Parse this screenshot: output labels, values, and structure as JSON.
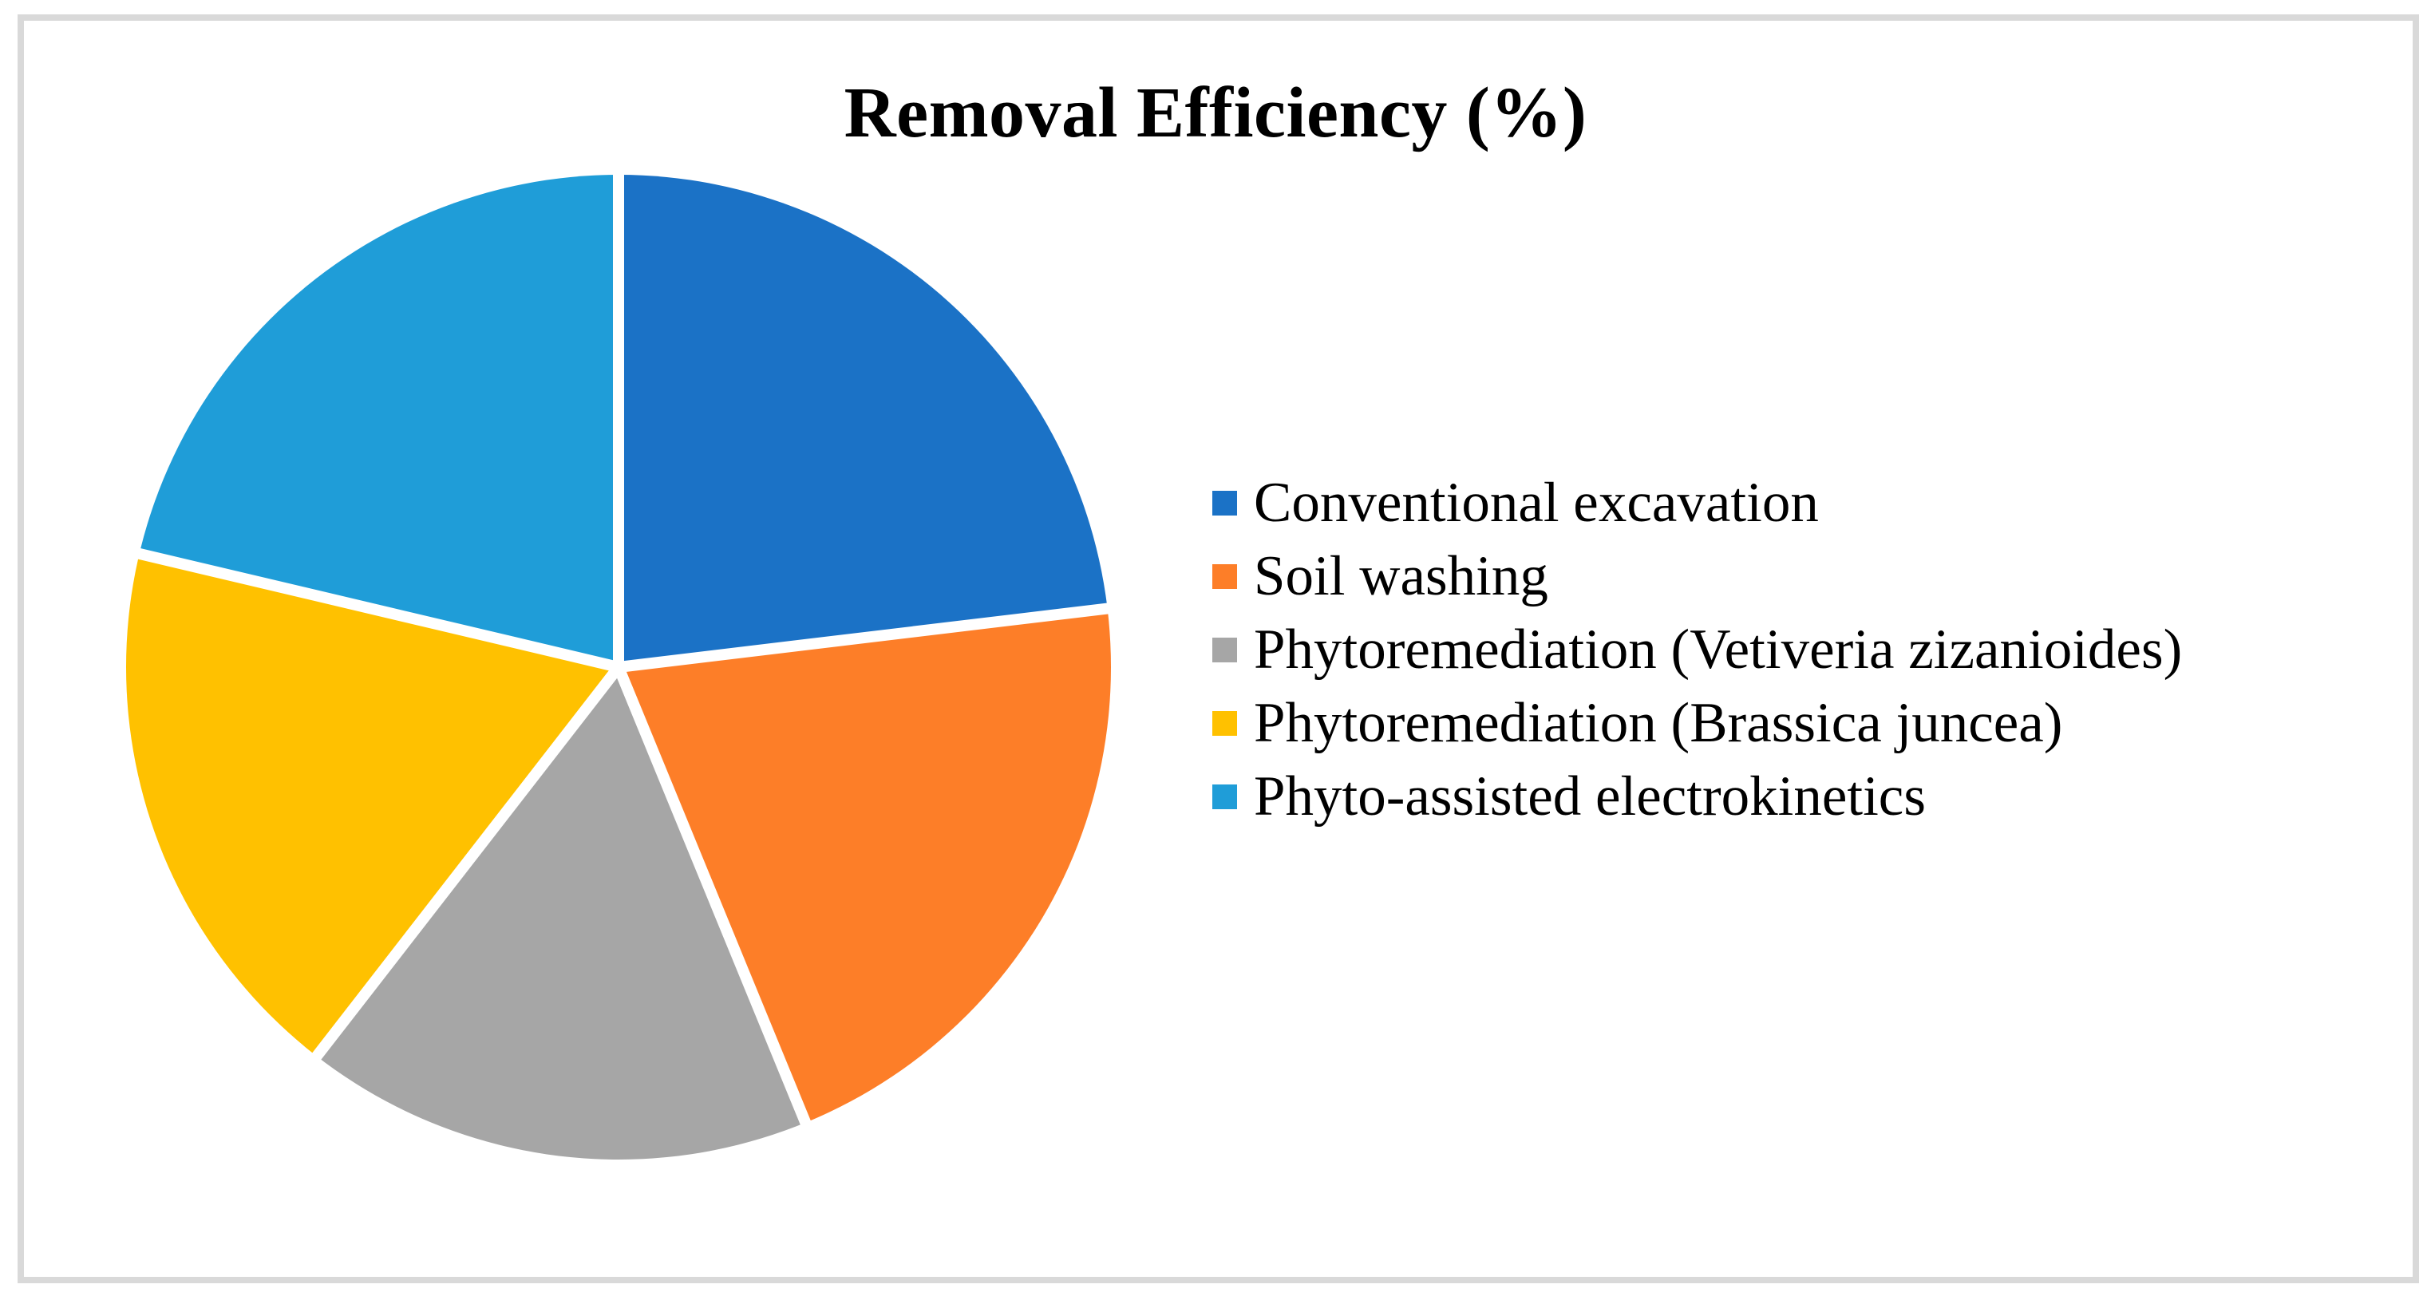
{
  "frame": {
    "border_color": "#d9d9d9",
    "background_color": "#ffffff"
  },
  "chart_data": {
    "type": "pie",
    "title": "Removal Efficiency (%)",
    "direction": "clockwise",
    "start_angle_deg": 0,
    "legend_position": "right",
    "slice_labels_shown": false,
    "separator_color": "#ffffff",
    "slices": [
      {
        "label": "Conventional excavation",
        "share_pct": 23.1,
        "color": "#1b72c6"
      },
      {
        "label": "Soil washing",
        "share_pct": 20.7,
        "color": "#fd7e28"
      },
      {
        "label": "Phytoremediation (Vetiveria zizanioides)",
        "share_pct": 16.7,
        "color": "#a6a6a6"
      },
      {
        "label": "Phytoremediation (Brassica juncea)",
        "share_pct": 18.2,
        "color": "#ffc100"
      },
      {
        "label": "Phyto-assisted electrokinetics",
        "share_pct": 21.3,
        "color": "#1f9dd8"
      }
    ]
  }
}
